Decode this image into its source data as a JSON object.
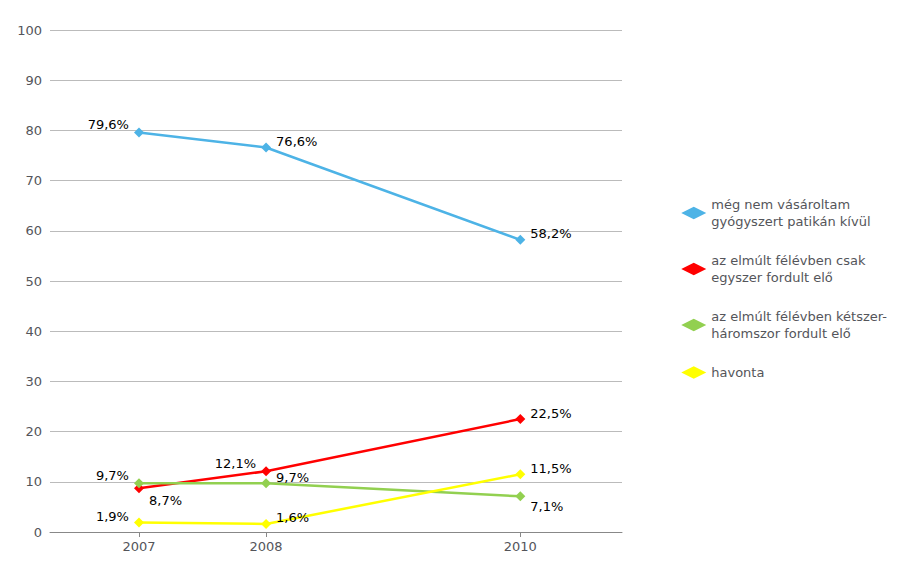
{
  "chart_data": {
    "type": "line",
    "x": [
      2007,
      2008,
      2010
    ],
    "series": [
      {
        "name": "még nem vásároltam\ngyógyszert patikán kívül",
        "color": "#4DB3E6",
        "marker": "diamond",
        "values": [
          79.6,
          76.6,
          58.2
        ],
        "value_labels": [
          "79,6%",
          "76,6%",
          "58,2%"
        ]
      },
      {
        "name": "az elmúlt félévben csak\negyszer fordult elő",
        "color": "#FF0000",
        "marker": "diamond",
        "values": [
          8.7,
          12.1,
          22.5
        ],
        "value_labels": [
          "8,7%",
          "12,1%",
          "22,5%"
        ]
      },
      {
        "name": "az elmúlt félévben kétszer-\nháromszor fordult elő",
        "color": "#92D050",
        "marker": "diamond",
        "values": [
          9.7,
          9.7,
          7.1
        ],
        "value_labels": [
          "9,7%",
          "9,7%",
          "7,1%"
        ]
      },
      {
        "name": "havonta",
        "color": "#FFFF00",
        "marker": "diamond",
        "values": [
          1.9,
          1.6,
          11.5
        ],
        "value_labels": [
          "1,9%",
          "1,6%",
          "11,5%"
        ]
      }
    ],
    "xlim": [
      2006.3,
      2010.8
    ],
    "xticks": [
      2007,
      2008,
      2010
    ],
    "ylim": [
      0,
      100
    ],
    "yticks": [
      0,
      10,
      20,
      30,
      40,
      50,
      60,
      70,
      80,
      90,
      100
    ],
    "grid": true,
    "legend": "right",
    "data_labels": true
  }
}
